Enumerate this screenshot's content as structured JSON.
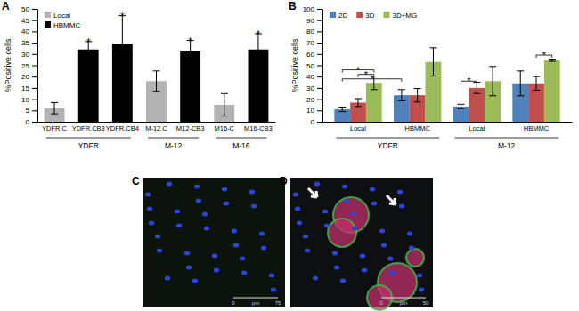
{
  "chart_data": [
    {
      "type": "bar",
      "panel_label": "A",
      "y_label": "%Positive cells",
      "categories": [
        "YDFR.C",
        "YDFR.CB3",
        "YDFR.CB4",
        "M-12.C",
        "M12-CB3",
        "M16-C",
        "M16-CB3"
      ],
      "groups": [
        {
          "label": "YDFR",
          "span": 3
        },
        {
          "label": "M-12",
          "span": 2
        },
        {
          "label": "M-16",
          "span": 2
        }
      ],
      "series": [
        {
          "name": "Local",
          "color": "#b3b3b3",
          "values": [
            6,
            null,
            null,
            18,
            null,
            7.5,
            null
          ],
          "errors": [
            2.5,
            null,
            null,
            4.5,
            null,
            5,
            null
          ]
        },
        {
          "name": "HBMMC",
          "color": "#000000",
          "values": [
            null,
            32,
            34.5,
            null,
            31.5,
            null,
            32
          ],
          "errors": [
            null,
            3.5,
            12.5,
            null,
            4.5,
            null,
            7
          ]
        }
      ],
      "annotations": [
        {
          "text": "*",
          "category": "YDFR.CB3"
        },
        {
          "text": "*",
          "category": "YDFR.CB4"
        },
        {
          "text": "*",
          "category": "M12-CB3"
        },
        {
          "text": "*",
          "category": "M16-CB3"
        }
      ],
      "ylim": [
        0,
        50
      ],
      "yticks": [
        0,
        5,
        10,
        15,
        20,
        25,
        30,
        35,
        40,
        45,
        50
      ],
      "legend": "upper left",
      "grid": false
    },
    {
      "type": "bar",
      "panel_label": "B",
      "y_label": "%Positive cells",
      "categories": [
        "Local",
        "HBMMC",
        "Local",
        "HBMMC"
      ],
      "groups": [
        {
          "label": "YDFR",
          "span": 2
        },
        {
          "label": "M-12",
          "span": 2
        }
      ],
      "series": [
        {
          "name": "2D",
          "color": "#4f81bd",
          "values": [
            11,
            23.5,
            13.5,
            34
          ],
          "errors": [
            2,
            5,
            2,
            11
          ]
        },
        {
          "name": "3D",
          "color": "#c0504d",
          "values": [
            17,
            23.5,
            30,
            34
          ],
          "errors": [
            3.5,
            6,
            5,
            6
          ]
        },
        {
          "name": "3D+MG",
          "color": "#9bbb59",
          "values": [
            34.5,
            53,
            36,
            54.5
          ],
          "errors": [
            6,
            12.5,
            13,
            1
          ]
        }
      ],
      "brackets": [
        {
          "text": "*",
          "from": [
            0,
            0
          ],
          "to": [
            0,
            2
          ],
          "y": 46
        },
        {
          "text": "*",
          "from": [
            0,
            1
          ],
          "to": [
            0,
            2
          ],
          "y": 42
        },
        {
          "text": "*",
          "from": [
            0,
            0
          ],
          "to": [
            1,
            0
          ],
          "y": 38
        },
        {
          "text": "*",
          "from": [
            2,
            0
          ],
          "to": [
            2,
            1
          ],
          "y": 36
        },
        {
          "text": "*",
          "from": [
            3,
            1
          ],
          "to": [
            3,
            2
          ],
          "y": 59
        }
      ],
      "ylim": [
        0,
        100
      ],
      "yticks": [
        0,
        10,
        20,
        30,
        40,
        50,
        60,
        70,
        80,
        90,
        100
      ],
      "legend": "upper left",
      "grid": false
    }
  ],
  "images": [
    {
      "panel_label": "C",
      "scale_bar": [
        "0",
        "μm",
        "75"
      ]
    },
    {
      "panel_label": "D",
      "scale_bar": [
        "0",
        "μm",
        "50"
      ]
    }
  ]
}
